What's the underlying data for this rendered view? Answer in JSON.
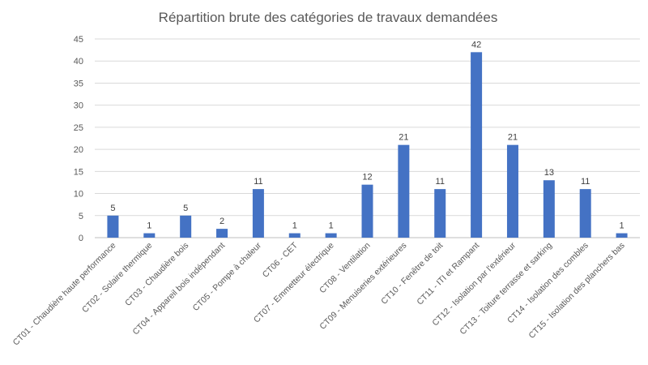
{
  "chart_data": {
    "type": "bar",
    "title": "Répartition brute des catégories de travaux demandées",
    "xlabel": "",
    "ylabel": "",
    "ylim": [
      0,
      45
    ],
    "yticks": [
      0,
      5,
      10,
      15,
      20,
      25,
      30,
      35,
      40,
      45
    ],
    "grid": true,
    "legend": "none",
    "bar_color": "#4472c4",
    "categories": [
      "CT01 - Chaudière haute performance",
      "CT02 - Solaire thermique",
      "CT03 - Chaudière bois",
      "CT04 - Appareil bois indépendant",
      "CT05 - Pompe à chaleur",
      "CT06 - CET",
      "CT07 - Emmetteur électrique",
      "CT08 - Ventilation",
      "CT09 - Menuiseries extérieures",
      "CT10 - Fenêtre de toit",
      "CT11 - ITI et Rampant",
      "CT12 - Isolation par l'extérieur",
      "CT13 - Toiture terrasse et sarking",
      "CT14 - Isolation des combles",
      "CT15 - Isolation des planchers bas"
    ],
    "values": [
      5,
      1,
      5,
      2,
      11,
      1,
      1,
      12,
      21,
      11,
      42,
      21,
      13,
      11,
      1
    ]
  }
}
